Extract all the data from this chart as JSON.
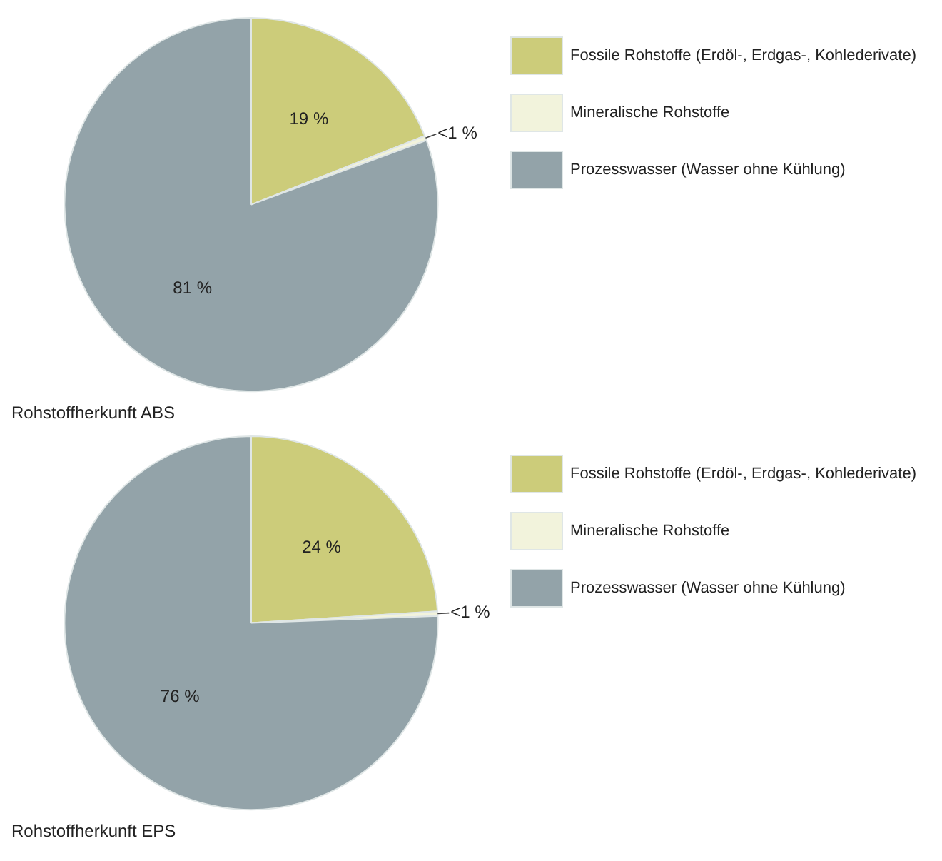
{
  "chart_data": [
    {
      "type": "pie",
      "title": "Rohstoffherkunft ABS",
      "categories": [
        "Fossile Rohstoffe (Erdöl-, Erdgas-, Kohlederivate)",
        "Mineralische Rohstoffe",
        "Prozesswasser (Wasser ohne Kühlung)"
      ],
      "values": [
        19,
        0.4,
        80.6
      ],
      "value_labels": [
        "19 %",
        "<1 %",
        "81 %"
      ],
      "colors": [
        "#cccc7a",
        "#f2f3dc",
        "#93a3a9"
      ],
      "legend": "right"
    },
    {
      "type": "pie",
      "title": "Rohstoffherkunft EPS",
      "categories": [
        "Fossile Rohstoffe (Erdöl-, Erdgas-, Kohlederivate)",
        "Mineralische Rohstoffe",
        "Prozesswasser (Wasser ohne Kühlung)"
      ],
      "values": [
        24,
        0.4,
        75.6
      ],
      "value_labels": [
        "24 %",
        "<1 %",
        "76 %"
      ],
      "colors": [
        "#cccc7a",
        "#f2f3dc",
        "#93a3a9"
      ],
      "legend": "right"
    }
  ]
}
